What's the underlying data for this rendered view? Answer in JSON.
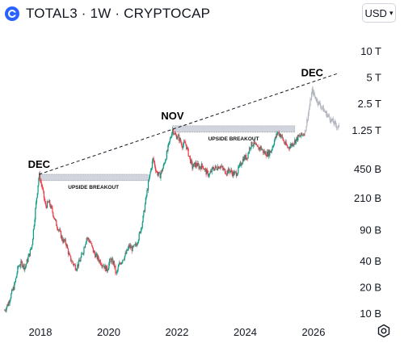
{
  "header": {
    "title": "TOTAL3 · 1W · CRYPTOCAP",
    "currency": "USD"
  },
  "chart_data": {
    "type": "candlestick",
    "title": "TOTAL3 · 1W · CRYPTOCAP",
    "y_scale": "log",
    "y_ticks": [
      {
        "label": "10 T",
        "value": 10000
      },
      {
        "label": "5 T",
        "value": 5000
      },
      {
        "label": "2.5 T",
        "value": 2500
      },
      {
        "label": "1.25 T",
        "value": 1250
      },
      {
        "label": "450 B",
        "value": 450
      },
      {
        "label": "210 B",
        "value": 210
      },
      {
        "label": "90 B",
        "value": 90
      },
      {
        "label": "40 B",
        "value": 40
      },
      {
        "label": "20 B",
        "value": 20
      },
      {
        "label": "10 B",
        "value": 10
      }
    ],
    "x_ticks": [
      "2018",
      "2020",
      "2022",
      "2024",
      "2026"
    ],
    "x_range": [
      2017.0,
      2027.3
    ],
    "y_range": [
      8,
      15000
    ],
    "colors": {
      "up": "#089981",
      "down": "#f23645",
      "projection": "#b2b5be",
      "zone": "#d1d4dc"
    },
    "annotations": [
      {
        "text": "DEC",
        "x": 2017.96,
        "y": 395
      },
      {
        "text": "NOV",
        "x": 2021.87,
        "y": 1420
      },
      {
        "text": "DEC",
        "x": 2025.96,
        "y": 4400
      }
    ],
    "trendline": {
      "style": "dashed",
      "from": {
        "x": 2017.96,
        "y": 395
      },
      "to": {
        "x": 2026.75,
        "y": 5700
      }
    },
    "zones": [
      {
        "label": "UPSIDE BREAKOUT",
        "x_start": 2017.96,
        "x_end": 2021.15,
        "y_low": 335,
        "y_high": 395
      },
      {
        "label": "UPSIDE BREAKOUT",
        "x_start": 2021.87,
        "x_end": 2025.45,
        "y_low": 1200,
        "y_high": 1420
      }
    ],
    "series": [
      {
        "name": "",
        "points": [
          [
            2016.95,
            11
          ],
          [
            2017.05,
            13
          ],
          [
            2017.15,
            17
          ],
          [
            2017.25,
            22
          ],
          [
            2017.35,
            35
          ],
          [
            2017.45,
            38
          ],
          [
            2017.55,
            34
          ],
          [
            2017.65,
            45
          ],
          [
            2017.75,
            60
          ],
          [
            2017.85,
            150
          ],
          [
            2017.96,
            395
          ],
          [
            2018.05,
            280
          ],
          [
            2018.15,
            170
          ],
          [
            2018.25,
            190
          ],
          [
            2018.35,
            150
          ],
          [
            2018.45,
            110
          ],
          [
            2018.55,
            90
          ],
          [
            2018.65,
            70
          ],
          [
            2018.75,
            65
          ],
          [
            2018.85,
            45
          ],
          [
            2018.95,
            38
          ],
          [
            2019.05,
            34
          ],
          [
            2019.15,
            40
          ],
          [
            2019.25,
            52
          ],
          [
            2019.35,
            75
          ],
          [
            2019.45,
            68
          ],
          [
            2019.55,
            52
          ],
          [
            2019.65,
            45
          ],
          [
            2019.75,
            40
          ],
          [
            2019.85,
            36
          ],
          [
            2019.95,
            32
          ],
          [
            2020.05,
            42
          ],
          [
            2020.15,
            38
          ],
          [
            2020.22,
            28
          ],
          [
            2020.3,
            36
          ],
          [
            2020.4,
            42
          ],
          [
            2020.5,
            48
          ],
          [
            2020.6,
            60
          ],
          [
            2020.7,
            55
          ],
          [
            2020.8,
            62
          ],
          [
            2020.9,
            80
          ],
          [
            2021.0,
            120
          ],
          [
            2021.1,
            220
          ],
          [
            2021.2,
            380
          ],
          [
            2021.3,
            600
          ],
          [
            2021.4,
            420
          ],
          [
            2021.5,
            380
          ],
          [
            2021.6,
            480
          ],
          [
            2021.7,
            680
          ],
          [
            2021.8,
            1000
          ],
          [
            2021.87,
            1300
          ],
          [
            2021.95,
            1100
          ],
          [
            2022.05,
            1050
          ],
          [
            2022.15,
            850
          ],
          [
            2022.25,
            900
          ],
          [
            2022.35,
            650
          ],
          [
            2022.45,
            480
          ],
          [
            2022.55,
            520
          ],
          [
            2022.65,
            480
          ],
          [
            2022.75,
            500
          ],
          [
            2022.85,
            420
          ],
          [
            2022.95,
            390
          ],
          [
            2023.05,
            460
          ],
          [
            2023.15,
            470
          ],
          [
            2023.25,
            500
          ],
          [
            2023.35,
            450
          ],
          [
            2023.45,
            420
          ],
          [
            2023.55,
            440
          ],
          [
            2023.65,
            400
          ],
          [
            2023.75,
            410
          ],
          [
            2023.85,
            500
          ],
          [
            2023.95,
            610
          ],
          [
            2024.05,
            620
          ],
          [
            2024.15,
            850
          ],
          [
            2024.25,
            900
          ],
          [
            2024.35,
            780
          ],
          [
            2024.45,
            800
          ],
          [
            2024.55,
            700
          ],
          [
            2024.65,
            680
          ],
          [
            2024.75,
            730
          ],
          [
            2024.85,
            950
          ],
          [
            2024.95,
            1200
          ],
          [
            2025.05,
            1100
          ],
          [
            2025.15,
            900
          ],
          [
            2025.25,
            800
          ],
          [
            2025.35,
            860
          ],
          [
            2025.45,
            950
          ],
          [
            2025.55,
            1050
          ],
          [
            2025.65,
            1100
          ],
          [
            2025.75,
            1200
          ]
        ]
      },
      {
        "name": "",
        "style": "projection",
        "points": [
          [
            2025.75,
            1200
          ],
          [
            2025.85,
            2000
          ],
          [
            2025.96,
            3600
          ],
          [
            2026.05,
            3000
          ],
          [
            2026.15,
            2600
          ],
          [
            2026.25,
            2300
          ],
          [
            2026.35,
            2000
          ],
          [
            2026.45,
            1800
          ],
          [
            2026.55,
            1600
          ],
          [
            2026.65,
            1450
          ],
          [
            2026.75,
            1350
          ]
        ]
      }
    ]
  }
}
